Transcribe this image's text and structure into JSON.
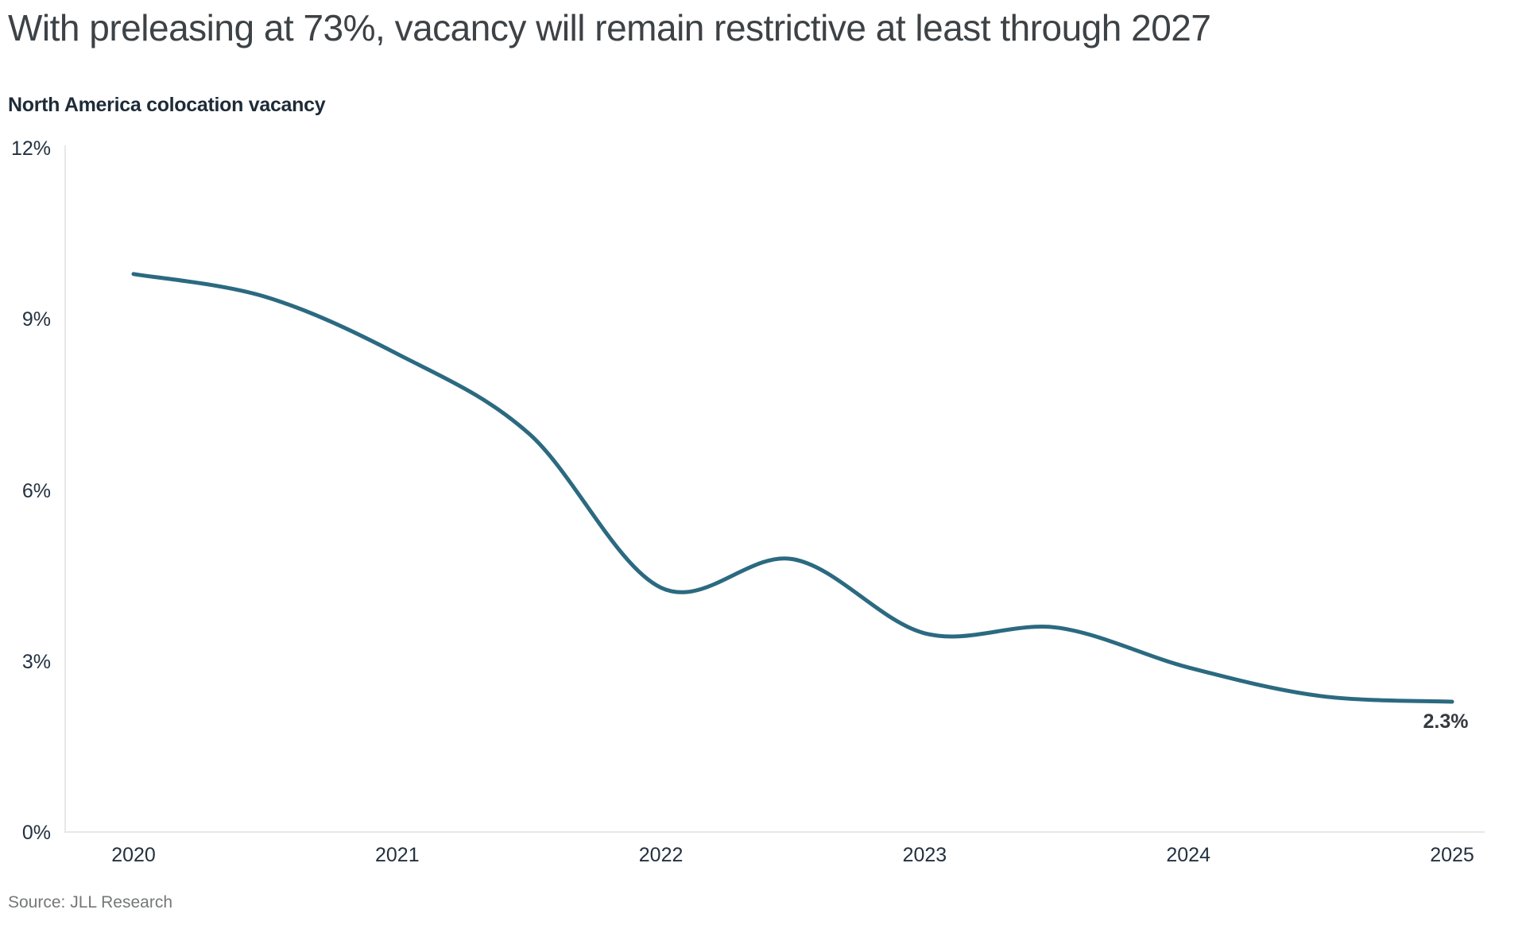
{
  "page": {
    "title": "With preleasing at 73%, vacancy will remain restrictive at least through 2027",
    "source": "Source: JLL Research"
  },
  "chart_data": {
    "type": "line",
    "title": "North America colocation vacancy",
    "x": [
      2020,
      2020.5,
      2021,
      2021.5,
      2022,
      2022.5,
      2023,
      2023.5,
      2024,
      2024.5,
      2025
    ],
    "series": [
      {
        "name": "North America colocation vacancy",
        "values": [
          9.8,
          9.4,
          8.4,
          7.0,
          4.3,
          4.8,
          3.5,
          3.6,
          2.9,
          2.4,
          2.3
        ]
      }
    ],
    "end_label": "2.3%",
    "x_ticks": [
      2020,
      2021,
      2022,
      2023,
      2024,
      2025
    ],
    "x_tick_labels": [
      "2020",
      "2021",
      "2022",
      "2023",
      "2024",
      "2025"
    ],
    "y_ticks": [
      12,
      9,
      6,
      3,
      0
    ],
    "y_tick_labels": [
      "12%",
      "9%",
      "6%",
      "3%",
      "0%"
    ],
    "xlim": [
      2020,
      2025
    ],
    "ylim": [
      0,
      12
    ],
    "grid": false,
    "legend": "none",
    "line_color": "#2b6a80"
  },
  "colors": {
    "title": "#3d4246",
    "subtitle": "#1e2b38",
    "tick_label": "#233140",
    "axis_line": "#e7e7e7",
    "line": "#2b6a80",
    "end_label": "#343a40",
    "source": "#757779"
  }
}
